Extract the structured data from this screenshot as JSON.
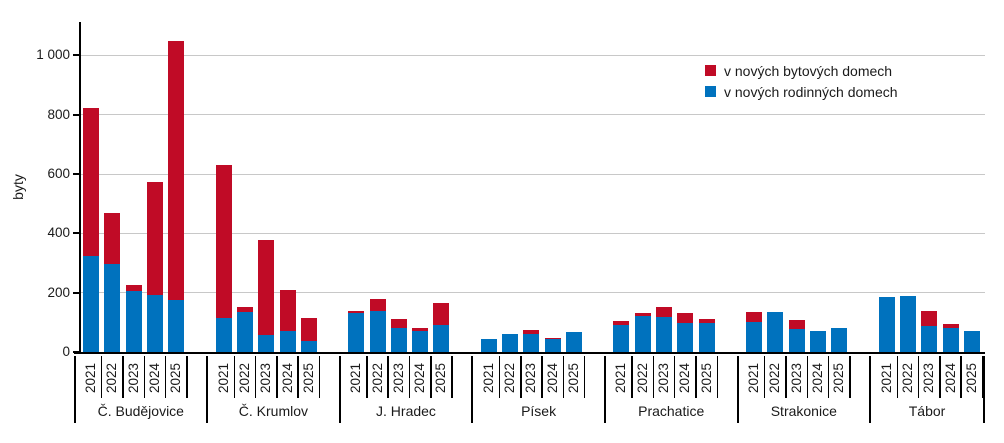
{
  "chart_data": {
    "type": "bar",
    "stacked": true,
    "title": "",
    "ylabel": "byty",
    "ylim": [
      0,
      1116
    ],
    "yticks": [
      0,
      200,
      400,
      600,
      800,
      1000
    ],
    "ytick_labels": [
      "0",
      "200",
      "400",
      "600",
      "800",
      "1 000"
    ],
    "grid": true,
    "legend_position": "top-right",
    "categories": [
      "Č. Budějovice",
      "Č. Krumlov",
      "J. Hradec",
      "Písek",
      "Prachatice",
      "Strakonice",
      "Tábor"
    ],
    "years": [
      "2021",
      "2022",
      "2023",
      "2024",
      "2025"
    ],
    "series": [
      {
        "name": "v nových bytových domech",
        "color": "#C00B26",
        "stack_order": "top",
        "values": [
          [
            500,
            174,
            20,
            382,
            871
          ],
          [
            517,
            17,
            320,
            139,
            78
          ],
          [
            5,
            40,
            31,
            12,
            74
          ],
          [
            0,
            0,
            12,
            5,
            0
          ],
          [
            13,
            9,
            36,
            32,
            12
          ],
          [
            34,
            0,
            30,
            0,
            0
          ],
          [
            0,
            0,
            49,
            13,
            0
          ]
        ]
      },
      {
        "name": "v nových rodinných domech",
        "color": "#0072BE",
        "stack_order": "bottom",
        "values": [
          [
            322,
            296,
            205,
            191,
            177
          ],
          [
            115,
            136,
            57,
            71,
            38
          ],
          [
            133,
            139,
            80,
            70,
            90
          ],
          [
            45,
            62,
            62,
            43,
            68
          ],
          [
            91,
            123,
            117,
            99,
            98
          ],
          [
            102,
            135,
            78,
            72,
            82
          ],
          [
            185,
            190,
            89,
            82,
            72
          ]
        ]
      }
    ]
  }
}
